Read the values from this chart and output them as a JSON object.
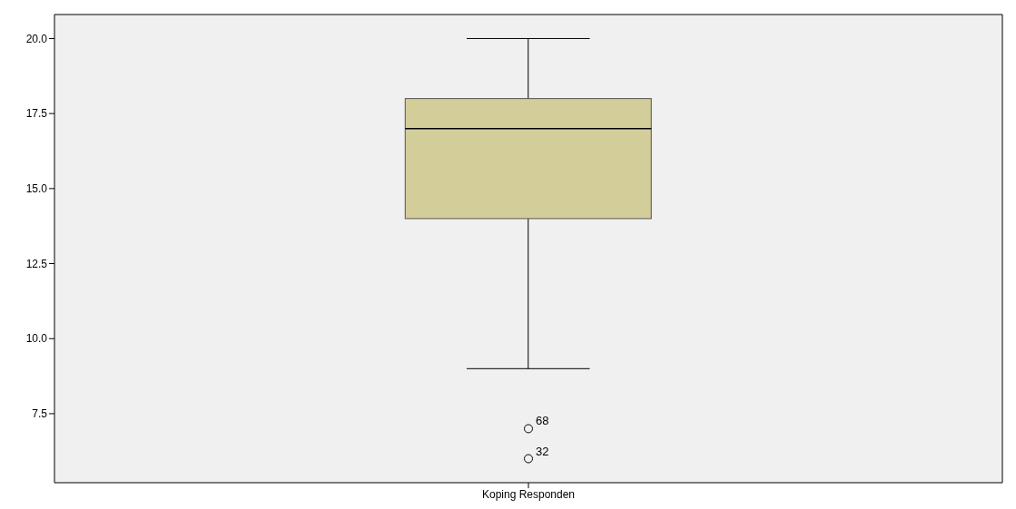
{
  "chart_data": {
    "type": "box",
    "categories": [
      "Koping Responden"
    ],
    "boxes": [
      {
        "low": 9,
        "q1": 14,
        "median": 17,
        "q3": 18,
        "high": 20,
        "outliers": [
          7,
          6
        ]
      }
    ],
    "color": "#d3ce99",
    "ylim": [
      5.2,
      20.8
    ],
    "yticks": [
      {
        "value": 7.5,
        "label": "7.5"
      },
      {
        "value": 10,
        "label": "10.0"
      },
      {
        "value": 12.5,
        "label": "12.5"
      },
      {
        "value": 15,
        "label": "15.0"
      },
      {
        "value": 17.5,
        "label": "17.5"
      },
      {
        "value": 20,
        "label": "20.0"
      }
    ],
    "annotations": [
      "68",
      "32"
    ],
    "grid": false,
    "legend": false
  }
}
